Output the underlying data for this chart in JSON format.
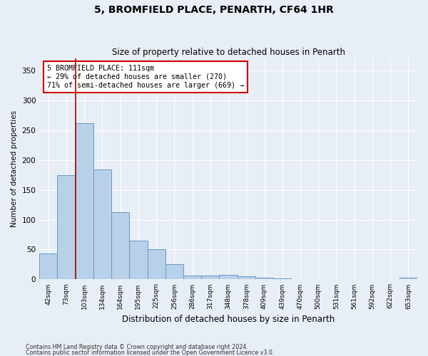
{
  "title1": "5, BROMFIELD PLACE, PENARTH, CF64 1HR",
  "title2": "Size of property relative to detached houses in Penarth",
  "xlabel": "Distribution of detached houses by size in Penarth",
  "ylabel": "Number of detached properties",
  "categories": [
    "42sqm",
    "73sqm",
    "103sqm",
    "134sqm",
    "164sqm",
    "195sqm",
    "225sqm",
    "256sqm",
    "286sqm",
    "317sqm",
    "348sqm",
    "378sqm",
    "409sqm",
    "439sqm",
    "470sqm",
    "500sqm",
    "531sqm",
    "561sqm",
    "592sqm",
    "622sqm",
    "653sqm"
  ],
  "values": [
    44,
    174,
    262,
    184,
    113,
    65,
    50,
    25,
    7,
    6,
    8,
    5,
    3,
    2,
    0,
    1,
    0,
    0,
    0,
    0,
    3
  ],
  "bar_color": "#b8d0e8",
  "bar_edge_color": "#6699cc",
  "vline_index": 1.5,
  "annotation_text_line1": "5 BROMFIELD PLACE: 111sqm",
  "annotation_text_line2": "← 29% of detached houses are smaller (270)",
  "annotation_text_line3": "71% of semi-detached houses are larger (669) →",
  "vline_color": "#aa0000",
  "annotation_box_facecolor": "white",
  "annotation_box_edgecolor": "#cc0000",
  "ylim": [
    0,
    370
  ],
  "yticks": [
    0,
    50,
    100,
    150,
    200,
    250,
    300,
    350
  ],
  "footer1": "Contains HM Land Registry data © Crown copyright and database right 2024.",
  "footer2": "Contains public sector information licensed under the Open Government Licence v3.0.",
  "bg_color": "#e8eef5",
  "plot_bg_color": "#e8eef5",
  "grid_color": "#ffffff",
  "title1_fontsize": 10,
  "title2_fontsize": 8.5
}
